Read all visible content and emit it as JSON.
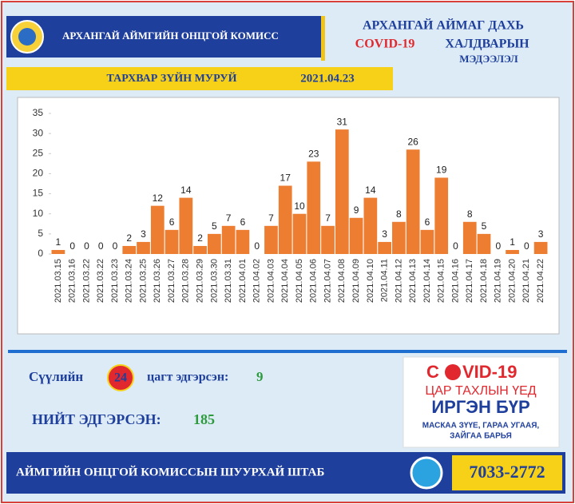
{
  "header": {
    "org": "АРХАНГАЙ АЙМГИЙН ОНЦГОЙ КОМИСС",
    "title_line1": "АРХАНГАЙ АЙМАГ ДАХЬ",
    "title_covid": "COVID-19",
    "title_line2": "ХАЛДВАРЫН",
    "title_line3": "МЭДЭЭЛЭЛ"
  },
  "chart_data": {
    "type": "bar",
    "title": "ТАРХВАР ЗҮЙН МУРУЙ",
    "date": "2021.04.23",
    "categories": [
      "2021.03.15",
      "2021.03.16",
      "2021.03.22",
      "2021.03.22",
      "2021.03.23",
      "2021.03.24",
      "2021.03.25",
      "2021.03.26",
      "2021.03.27",
      "2021.03.28",
      "2021.03.29",
      "2021.03.30",
      "2021.03.31",
      "2021.04.01",
      "2021.04.02",
      "2021.04.03",
      "2021.04.04",
      "2021.04.05",
      "2021.04.06",
      "2021.04.07",
      "2021.04.08",
      "2021.04.09",
      "2021.04.10",
      "2021.04.11",
      "2021.04.12",
      "2021.04.13",
      "2021.04.14",
      "2021.04.15",
      "2021.04.16",
      "2021.04.17",
      "2021.04.18",
      "2021.04.19",
      "2021.04.20",
      "2021.04.21",
      "2021.04.22"
    ],
    "values": [
      1,
      0,
      0,
      0,
      0,
      2,
      3,
      12,
      6,
      14,
      2,
      5,
      7,
      6,
      0,
      7,
      17,
      10,
      23,
      7,
      31,
      9,
      14,
      3,
      8,
      26,
      6,
      19,
      0,
      8,
      5,
      0,
      1,
      0,
      3
    ],
    "color": "#ed7d31",
    "ylim": [
      0,
      35
    ],
    "yticks": [
      0,
      5,
      10,
      15,
      20,
      25,
      30,
      35
    ],
    "grid": false
  },
  "recovered": {
    "prefix": "Сүүлийн",
    "hours": "24",
    "suffix": "цагт эдгэрсэн:",
    "count": "9",
    "total_label": "НИЙТ ЭДГЭРСЭН:",
    "total": "185"
  },
  "banner": {
    "c": "C",
    "vid": "VID-19",
    "line1": "ЦАР ТАХЛЫН ҮЕД",
    "line2": "ИРГЭН БҮР",
    "line3": "МАСКАА ЗҮҮЕ, ГАРАА УГААЯ,",
    "line4": "ЗАЙГАА БАРЬЯ"
  },
  "footer": {
    "text": "АЙМГИЙН ОНЦГОЙ КОМИССЫН ШУУРХАЙ ШТАБ",
    "phone": "7033-2772"
  }
}
